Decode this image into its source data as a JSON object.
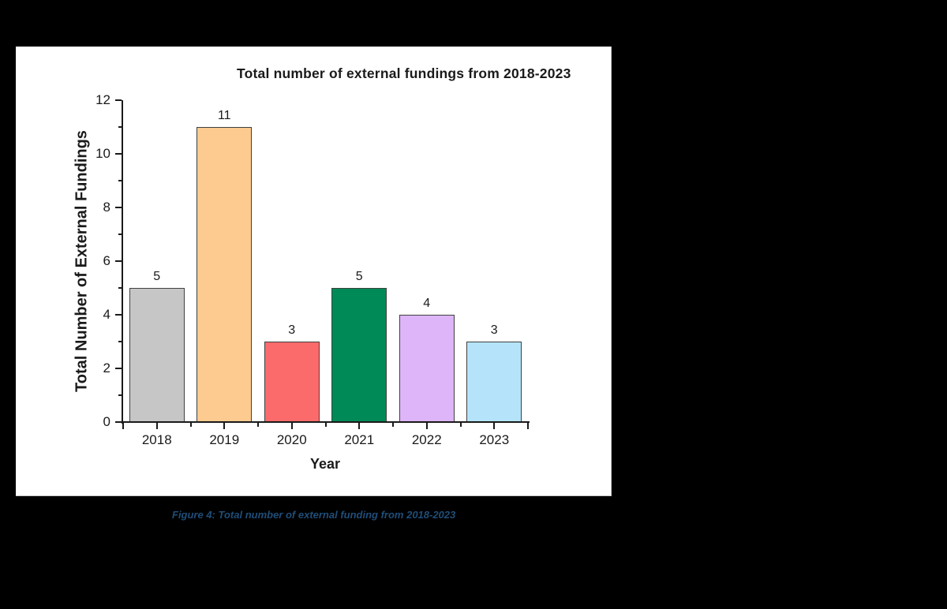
{
  "chart_data": {
    "type": "bar",
    "title": "Total number of external fundings from 2018-2023",
    "xlabel": "Year",
    "ylabel": "Total Number of External Fundings",
    "categories": [
      "2018",
      "2019",
      "2020",
      "2021",
      "2022",
      "2023"
    ],
    "values": [
      5,
      11,
      3,
      5,
      4,
      3
    ],
    "data_labels": [
      "5",
      "11",
      "3",
      "5",
      "4",
      "3"
    ],
    "bar_colors": [
      "#c6c6c6",
      "#fdca90",
      "#fc6b6b",
      "#008a57",
      "#ddb5f8",
      "#b5e4fa"
    ],
    "bar_border_color": "#404040",
    "ylim": [
      0,
      12
    ],
    "y_major_ticks": [
      0,
      2,
      4,
      6,
      8,
      10,
      12
    ],
    "y_minor_ticks": [
      1,
      3,
      5,
      7,
      9,
      11
    ],
    "grid": false,
    "legend": "none",
    "background_color": "#ffffff",
    "page_background_color": "#000000"
  },
  "caption": {
    "text": "Figure 4: Total number of external funding from 2018-2023",
    "color": "#1f4e79"
  }
}
